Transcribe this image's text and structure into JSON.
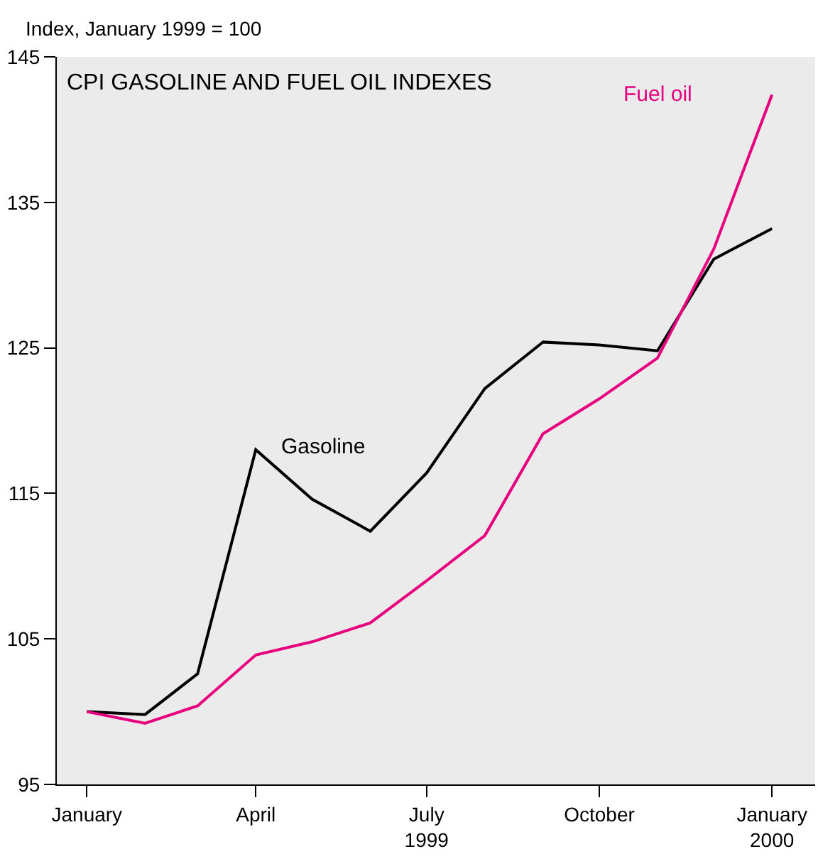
{
  "chart_data": {
    "type": "line",
    "title": "CPI GASOLINE AND FUEL OIL INDEXES",
    "ylabel": "Index, January 1999 = 100",
    "x": [
      "1999-01",
      "1999-02",
      "1999-03",
      "1999-04",
      "1999-05",
      "1999-06",
      "1999-07",
      "1999-08",
      "1999-09",
      "1999-10",
      "1999-11",
      "1999-12",
      "2000-01"
    ],
    "series": [
      {
        "name": "Gasoline",
        "color": "#000000",
        "values": [
          100.0,
          99.8,
          102.6,
          118.0,
          114.6,
          112.4,
          116.4,
          122.2,
          125.4,
          125.2,
          124.8,
          131.1,
          133.2
        ]
      },
      {
        "name": "Fuel oil",
        "color": "#e6007e",
        "values": [
          100.0,
          99.2,
          100.4,
          103.9,
          104.8,
          106.1,
          109.0,
          112.1,
          119.1,
          121.5,
          124.3,
          131.8,
          142.4
        ]
      }
    ],
    "xlim": [
      "1998-12-16",
      "2000-01-24"
    ],
    "xticks": [
      {
        "value": "1999-01",
        "label": "January"
      },
      {
        "value": "1999-04",
        "label": "April"
      },
      {
        "value": "1999-07",
        "label": "July\n1999"
      },
      {
        "value": "1999-10",
        "label": "October"
      },
      {
        "value": "2000-01",
        "label": "January\n2000"
      }
    ],
    "ylim": [
      95,
      145
    ],
    "yticks": [
      95,
      105,
      115,
      125,
      135,
      145
    ],
    "grid": false,
    "legend": false,
    "marker": "none",
    "line_style": "solid"
  }
}
